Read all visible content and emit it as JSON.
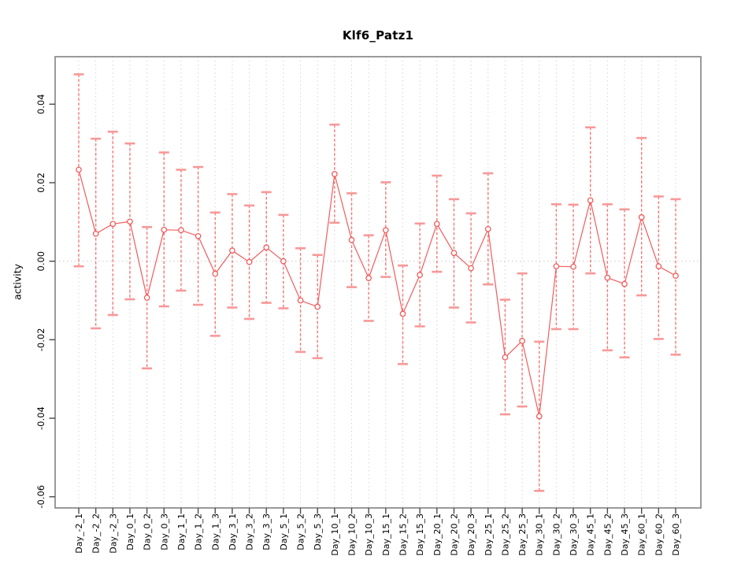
{
  "title": "Klf6_Patz1",
  "chart_data": {
    "type": "line",
    "title": "Klf6_Patz1",
    "xlabel": "",
    "ylabel": "activity",
    "legend": "none",
    "grid": "vertical-dotted-per-category",
    "zero_line_dotted": true,
    "marker": "open-circle",
    "error_bars": "dashed-with-caps",
    "categories": [
      "Day_-2_1",
      "Day_-2_2",
      "Day_-2_3",
      "Day_0_1",
      "Day_0_2",
      "Day_0_3",
      "Day_1_1",
      "Day_1_2",
      "Day_1_3",
      "Day_3_1",
      "Day_3_2",
      "Day_3_3",
      "Day_5_1",
      "Day_5_2",
      "Day_5_3",
      "Day_10_1",
      "Day_10_2",
      "Day_10_3",
      "Day_15_1",
      "Day_15_2",
      "Day_15_3",
      "Day_20_1",
      "Day_20_2",
      "Day_20_3",
      "Day_25_1",
      "Day_25_2",
      "Day_25_3",
      "Day_30_1",
      "Day_30_2",
      "Day_30_3",
      "Day_45_1",
      "Day_45_2",
      "Day_45_3",
      "Day_60_1",
      "Day_60_2",
      "Day_60_3"
    ],
    "series": [
      {
        "name": "activity",
        "values": [
          0.0233,
          0.007,
          0.0095,
          0.0101,
          -0.0093,
          0.008,
          0.0079,
          0.0064,
          -0.0032,
          0.0027,
          -0.0002,
          0.0035,
          0.0,
          -0.01,
          -0.0116,
          0.0222,
          0.0054,
          -0.0043,
          0.0079,
          -0.0134,
          -0.0035,
          0.0095,
          0.0021,
          -0.0018,
          0.0082,
          -0.0245,
          -0.0203,
          -0.0395,
          -0.0013,
          -0.0014,
          0.0155,
          -0.0042,
          -0.0058,
          0.0112,
          -0.0013,
          -0.0037
        ],
        "error_high": [
          0.0476,
          0.0312,
          0.033,
          0.03,
          0.0087,
          0.0277,
          0.0233,
          0.024,
          0.0124,
          0.0171,
          0.0142,
          0.0176,
          0.0118,
          0.0033,
          0.0016,
          0.0348,
          0.0173,
          0.0066,
          0.0201,
          -0.0011,
          0.0096,
          0.0218,
          0.0158,
          0.0122,
          0.0224,
          -0.0098,
          -0.0031,
          -0.0205,
          0.0145,
          0.0144,
          0.0341,
          0.0145,
          0.0132,
          0.0314,
          0.0165,
          0.0158
        ],
        "error_low": [
          -0.0013,
          -0.0171,
          -0.0137,
          -0.0097,
          -0.0273,
          -0.0115,
          -0.0075,
          -0.0111,
          -0.019,
          -0.0118,
          -0.0147,
          -0.0106,
          -0.012,
          -0.0231,
          -0.0247,
          0.0098,
          -0.0066,
          -0.0152,
          -0.004,
          -0.0262,
          -0.0166,
          -0.0027,
          -0.0118,
          -0.0156,
          -0.0059,
          -0.039,
          -0.037,
          -0.0585,
          -0.0173,
          -0.0173,
          -0.0031,
          -0.0227,
          -0.0245,
          -0.0087,
          -0.0198,
          -0.0238
        ]
      }
    ],
    "yticks": [
      0.04,
      0.02,
      0.0,
      -0.02,
      -0.04,
      -0.06
    ],
    "ytick_labels": [
      "0.04",
      "0.02",
      "0.00",
      "-0.02",
      "-0.04",
      "-0.06"
    ],
    "ylim": [
      -0.063,
      0.052
    ],
    "colors": {
      "series": "#f25c5c",
      "error_line": "#f47878",
      "error_cap": "#f89898",
      "grid": "#d6d6d6",
      "zero_line": "#c9c9c9",
      "box": "#8f8f8f",
      "tick": "#4a4a4a",
      "text": "#000000"
    }
  }
}
